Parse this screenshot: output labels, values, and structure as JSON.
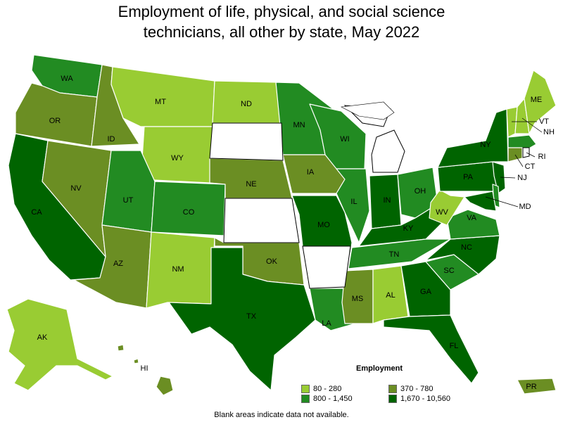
{
  "title_line1": "Employment of life, physical, and social science",
  "title_line2": "technicians, all other by state, May 2022",
  "legend": {
    "title": "Employment",
    "items": [
      {
        "label": "80 - 280",
        "color": "#99cc33"
      },
      {
        "label": "370 - 780",
        "color": "#6b8e23"
      },
      {
        "label": "800 - 1,450",
        "color": "#228b22"
      },
      {
        "label": "1,670 - 10,560",
        "color": "#006400"
      }
    ]
  },
  "footnote": "Blank areas indicate data not available.",
  "chart_data": {
    "type": "choropleth",
    "legend_title": "Employment",
    "bins": [
      "80 - 280",
      "370 - 780",
      "800 - 1,450",
      "1,670 - 10,560"
    ],
    "states": [
      {
        "abbr": "WA",
        "bin": 2
      },
      {
        "abbr": "OR",
        "bin": 1
      },
      {
        "abbr": "CA",
        "bin": 3
      },
      {
        "abbr": "ID",
        "bin": 1
      },
      {
        "abbr": "NV",
        "bin": 1
      },
      {
        "abbr": "MT",
        "bin": 0
      },
      {
        "abbr": "WY",
        "bin": 0
      },
      {
        "abbr": "UT",
        "bin": 2
      },
      {
        "abbr": "CO",
        "bin": 2
      },
      {
        "abbr": "AZ",
        "bin": 1
      },
      {
        "abbr": "NM",
        "bin": 0
      },
      {
        "abbr": "ND",
        "bin": 0
      },
      {
        "abbr": "NE",
        "bin": 1
      },
      {
        "abbr": "OK",
        "bin": 1
      },
      {
        "abbr": "TX",
        "bin": 3
      },
      {
        "abbr": "MN",
        "bin": 2
      },
      {
        "abbr": "IA",
        "bin": 1
      },
      {
        "abbr": "MO",
        "bin": 3
      },
      {
        "abbr": "LA",
        "bin": 2
      },
      {
        "abbr": "WI",
        "bin": 2
      },
      {
        "abbr": "IL",
        "bin": 2
      },
      {
        "abbr": "IN",
        "bin": 3
      },
      {
        "abbr": "OH",
        "bin": 2
      },
      {
        "abbr": "KY",
        "bin": 3
      },
      {
        "abbr": "TN",
        "bin": 2
      },
      {
        "abbr": "MS",
        "bin": 1
      },
      {
        "abbr": "AL",
        "bin": 0
      },
      {
        "abbr": "GA",
        "bin": 3
      },
      {
        "abbr": "FL",
        "bin": 3
      },
      {
        "abbr": "SC",
        "bin": 2
      },
      {
        "abbr": "NC",
        "bin": 3
      },
      {
        "abbr": "VA",
        "bin": 2
      },
      {
        "abbr": "WV",
        "bin": 0
      },
      {
        "abbr": "PA",
        "bin": 3
      },
      {
        "abbr": "NY",
        "bin": 3
      },
      {
        "abbr": "VT",
        "bin": 0
      },
      {
        "abbr": "NH",
        "bin": 0
      },
      {
        "abbr": "ME",
        "bin": 0
      },
      {
        "abbr": "MA",
        "bin": 2
      },
      {
        "abbr": "CT",
        "bin": 1
      },
      {
        "abbr": "RI",
        "bin": null
      },
      {
        "abbr": "NJ",
        "bin": 3
      },
      {
        "abbr": "DE",
        "bin": 2
      },
      {
        "abbr": "MD",
        "bin": 3
      },
      {
        "abbr": "AK",
        "bin": 0
      },
      {
        "abbr": "HI",
        "bin": 1
      },
      {
        "abbr": "PR",
        "bin": 1
      },
      {
        "abbr": "SD",
        "bin": null
      },
      {
        "abbr": "KS",
        "bin": null
      },
      {
        "abbr": "AR",
        "bin": null
      },
      {
        "abbr": "MI",
        "bin": null
      }
    ]
  }
}
